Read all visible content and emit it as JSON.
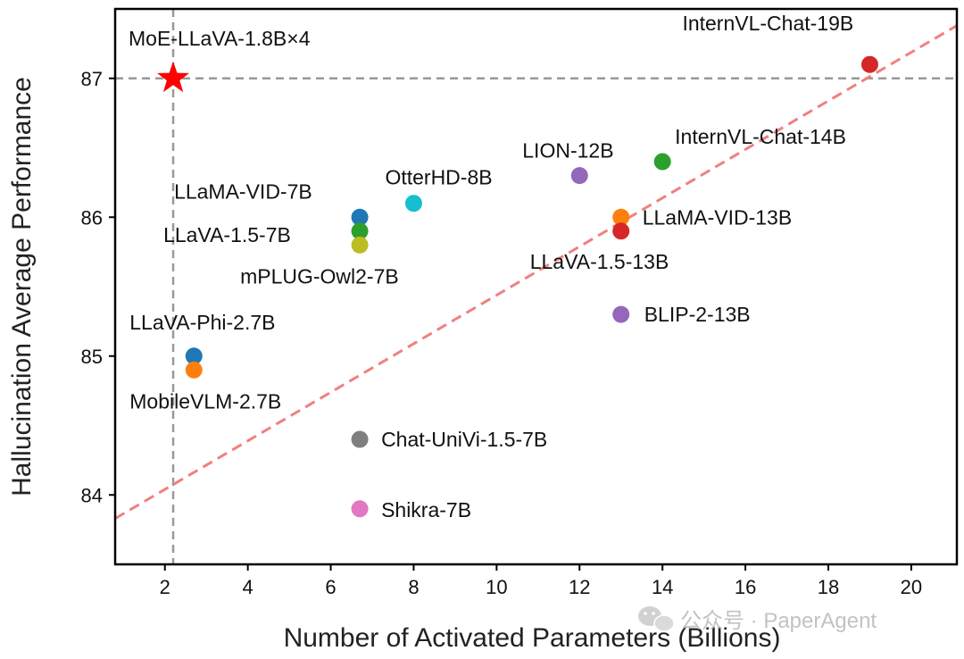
{
  "chart_data": {
    "type": "scatter",
    "title": "",
    "xlabel": "Number of Activated Parameters (Billions)",
    "ylabel": "Hallucination Average Performance",
    "xlim": [
      0.8,
      21.1
    ],
    "ylim": [
      83.5,
      87.5
    ],
    "xticks": [
      2,
      4,
      6,
      8,
      10,
      12,
      14,
      16,
      18,
      20
    ],
    "yticks": [
      84,
      85,
      86,
      87
    ],
    "grid": false,
    "highlight": {
      "name": "MoE-LLaVA-1.8B×4",
      "x": 2.2,
      "y": 87.0,
      "marker": "star",
      "color": "#ff0000"
    },
    "points": [
      {
        "name": "InternVL-Chat-19B",
        "x": 19.0,
        "y": 87.1,
        "color": "#d62728"
      },
      {
        "name": "InternVL-Chat-14B",
        "x": 14.0,
        "y": 86.4,
        "color": "#2ca02c"
      },
      {
        "name": "LION-12B",
        "x": 12.0,
        "y": 86.3,
        "color": "#9467bd"
      },
      {
        "name": "OtterHD-8B",
        "x": 8.0,
        "y": 86.1,
        "color": "#17becf"
      },
      {
        "name": "LLaMA-VID-7B",
        "x": 6.7,
        "y": 86.0,
        "color": "#1f77b4"
      },
      {
        "name": "LLaVA-1.5-7B",
        "x": 6.7,
        "y": 85.9,
        "color": "#2ca02c"
      },
      {
        "name": "mPLUG-Owl2-7B",
        "x": 6.7,
        "y": 85.8,
        "color": "#bcbd22"
      },
      {
        "name": "LLaMA-VID-13B",
        "x": 13.0,
        "y": 86.0,
        "color": "#ff7f0e"
      },
      {
        "name": "LLaVA-1.5-13B",
        "x": 13.0,
        "y": 85.9,
        "color": "#d62728"
      },
      {
        "name": "BLIP-2-13B",
        "x": 13.0,
        "y": 85.3,
        "color": "#9467bd"
      },
      {
        "name": "LLaVA-Phi-2.7B",
        "x": 2.7,
        "y": 85.0,
        "color": "#1f77b4"
      },
      {
        "name": "MobileVLM-2.7B",
        "x": 2.7,
        "y": 84.9,
        "color": "#ff7f0e"
      },
      {
        "name": "Chat-UniVi-1.5-7B",
        "x": 6.7,
        "y": 84.4,
        "color": "#7f7f7f"
      },
      {
        "name": "Shikra-7B",
        "x": 6.7,
        "y": 83.9,
        "color": "#e377c2"
      }
    ],
    "trend_line": {
      "x": [
        0.8,
        21.1
      ],
      "y": [
        83.83,
        87.38
      ],
      "color": "#f08080",
      "style": "dashed"
    },
    "reference_lines": {
      "x": 2.2,
      "y": 87.0,
      "color": "#999999",
      "style": "dashed"
    }
  },
  "watermark": {
    "text": "公众号 · PaperAgent",
    "icon": "wechat-icon"
  }
}
